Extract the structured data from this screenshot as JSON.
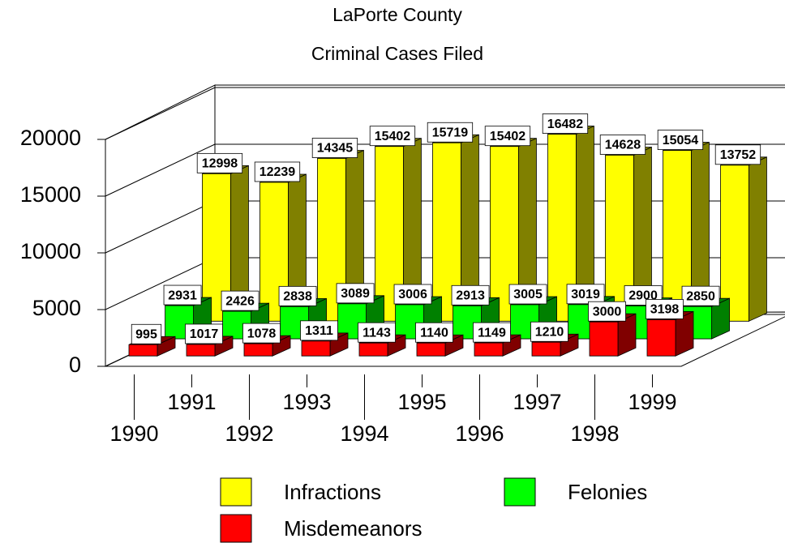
{
  "chart_data": {
    "type": "bar3d",
    "title": "LaPorte County",
    "subtitle": "Criminal Cases Filed",
    "categories": [
      "1990",
      "1991",
      "1992",
      "1993",
      "1994",
      "1995",
      "1996",
      "1997",
      "1998",
      "1999"
    ],
    "series": [
      {
        "name": "Infractions",
        "color": "#ffff00",
        "side_color": "#808000",
        "values": [
          12998,
          12239,
          14345,
          15402,
          15719,
          15402,
          16482,
          14628,
          15054,
          13752
        ]
      },
      {
        "name": "Felonies",
        "color": "#00ff00",
        "side_color": "#008000",
        "values": [
          2931,
          2426,
          2838,
          3089,
          3006,
          2913,
          3005,
          3019,
          2900,
          2850
        ]
      },
      {
        "name": "Misdemeanors",
        "color": "#ff0000",
        "side_color": "#800000",
        "values": [
          995,
          1017,
          1078,
          1311,
          1143,
          1140,
          1149,
          1210,
          3000,
          3198
        ]
      }
    ],
    "ylim": [
      0,
      20000
    ],
    "yticks": [
      0,
      5000,
      10000,
      15000,
      20000
    ],
    "grid": true
  }
}
